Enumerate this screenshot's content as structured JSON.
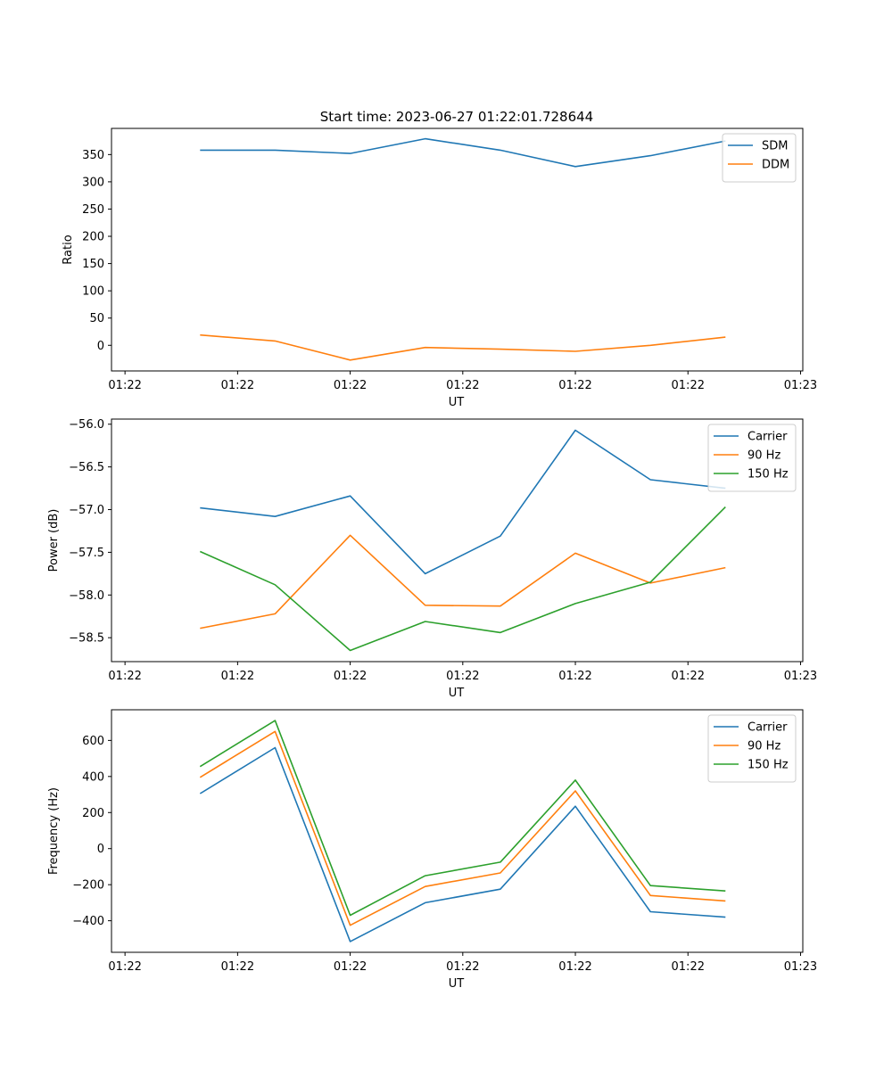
{
  "figure": {
    "title": "Start time: 2023-06-27 01:22:01.728644"
  },
  "colors": {
    "blue": "#1f77b4",
    "orange": "#ff7f0e",
    "green": "#2ca02c",
    "axes": "#000000"
  },
  "chart_data": [
    {
      "type": "line",
      "title": "",
      "xlabel": "UT",
      "ylabel": "Ratio",
      "x": [
        1,
        2,
        3,
        4,
        5,
        6,
        7,
        8
      ],
      "xticks": [
        0,
        1.5,
        3,
        4.5,
        6,
        7.5,
        9
      ],
      "xtick_labels": [
        "01:22",
        "01:22",
        "01:22",
        "01:22",
        "01:22",
        "01:22",
        "01:23"
      ],
      "xlim": [
        -0.18,
        9.03
      ],
      "ylim": [
        -47,
        398
      ],
      "yticks": [
        0,
        50,
        100,
        150,
        200,
        250,
        300,
        350
      ],
      "ytick_labels": [
        "0",
        "50",
        "100",
        "150",
        "200",
        "250",
        "300",
        "350"
      ],
      "grid": false,
      "legend": "upper right",
      "series": [
        {
          "name": "SDM",
          "color": "#1f77b4",
          "values": [
            358,
            358,
            352,
            379,
            358,
            328,
            348,
            375
          ]
        },
        {
          "name": "DDM",
          "color": "#ff7f0e",
          "values": [
            19,
            8,
            -27,
            -4,
            -7,
            -11,
            0,
            15
          ]
        }
      ]
    },
    {
      "type": "line",
      "title": "",
      "xlabel": "UT",
      "ylabel": "Power (dB)",
      "x": [
        1,
        2,
        3,
        4,
        5,
        6,
        7,
        8
      ],
      "xticks": [
        0,
        1.5,
        3,
        4.5,
        6,
        7.5,
        9
      ],
      "xtick_labels": [
        "01:22",
        "01:22",
        "01:22",
        "01:22",
        "01:22",
        "01:22",
        "01:23"
      ],
      "xlim": [
        -0.18,
        9.03
      ],
      "ylim": [
        -58.78,
        -55.94
      ],
      "yticks": [
        -58.5,
        -58.0,
        -57.5,
        -57.0,
        -56.5,
        -56.0
      ],
      "ytick_labels": [
        "−58.5",
        "−58.0",
        "−57.5",
        "−57.0",
        "−56.5",
        "−56.0"
      ],
      "grid": false,
      "legend": "upper right",
      "series": [
        {
          "name": "Carrier",
          "color": "#1f77b4",
          "values": [
            -56.98,
            -57.08,
            -56.84,
            -57.75,
            -57.31,
            -56.07,
            -56.65,
            -56.75
          ]
        },
        {
          "name": "90 Hz",
          "color": "#ff7f0e",
          "values": [
            -58.39,
            -58.22,
            -57.3,
            -58.12,
            -58.13,
            -57.51,
            -57.86,
            -57.68
          ]
        },
        {
          "name": "150 Hz",
          "color": "#2ca02c",
          "values": [
            -57.49,
            -57.88,
            -58.65,
            -58.31,
            -58.44,
            -58.1,
            -57.85,
            -56.97
          ]
        }
      ]
    },
    {
      "type": "line",
      "title": "",
      "xlabel": "UT",
      "ylabel": "Frequency (Hz)",
      "x": [
        1,
        2,
        3,
        4,
        5,
        6,
        7,
        8
      ],
      "xticks": [
        0,
        1.5,
        3,
        4.5,
        6,
        7.5,
        9
      ],
      "xtick_labels": [
        "01:22",
        "01:22",
        "01:22",
        "01:22",
        "01:22",
        "01:22",
        "01:23"
      ],
      "xlim": [
        -0.18,
        9.03
      ],
      "ylim": [
        -575,
        770
      ],
      "yticks": [
        -400,
        -200,
        0,
        200,
        400,
        600
      ],
      "ytick_labels": [
        "−400",
        "−200",
        "0",
        "200",
        "400",
        "600"
      ],
      "grid": false,
      "legend": "upper right",
      "series": [
        {
          "name": "Carrier",
          "color": "#1f77b4",
          "values": [
            305,
            560,
            -515,
            -300,
            -225,
            235,
            -350,
            -380
          ]
        },
        {
          "name": "90 Hz",
          "color": "#ff7f0e",
          "values": [
            395,
            650,
            -425,
            -210,
            -135,
            320,
            -260,
            -290
          ]
        },
        {
          "name": "150 Hz",
          "color": "#2ca02c",
          "values": [
            455,
            710,
            -370,
            -150,
            -75,
            380,
            -205,
            -235
          ]
        }
      ]
    }
  ]
}
